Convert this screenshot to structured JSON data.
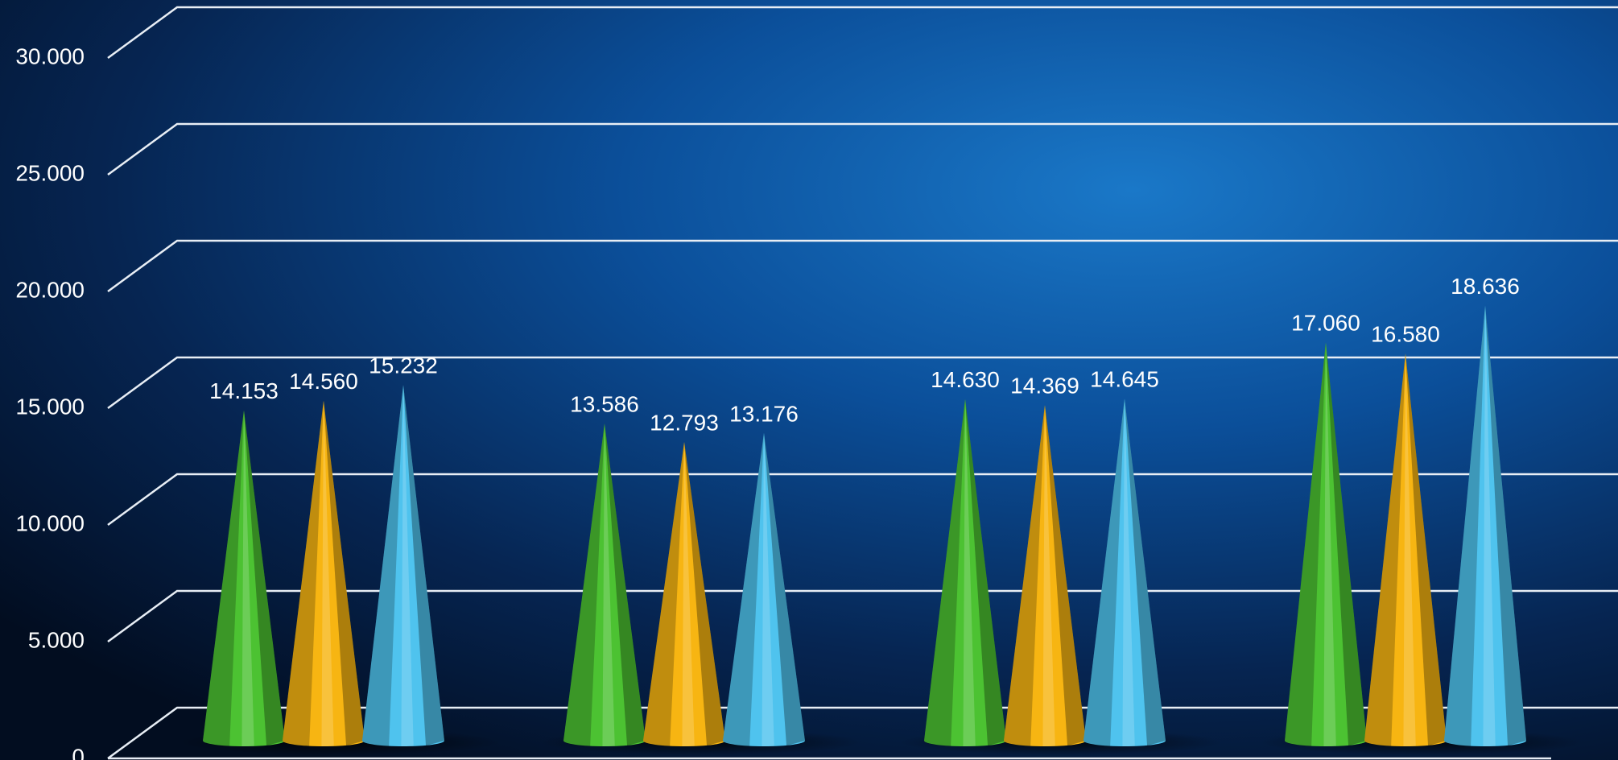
{
  "chart_data": {
    "type": "cone",
    "categories": [
      null,
      null,
      null,
      null
    ],
    "series": [
      {
        "color": "#4cc232",
        "values": [
          14153,
          13586,
          14630,
          17060
        ],
        "value_labels": [
          "14.153",
          "13.586",
          "14.630",
          "17.060"
        ]
      },
      {
        "color": "#f7b512",
        "values": [
          14560,
          12793,
          14369,
          16580
        ],
        "value_labels": [
          "14.560",
          "12.793",
          "14.369",
          "16.580"
        ]
      },
      {
        "color": "#4fc3ee",
        "values": [
          15232,
          13176,
          14645,
          18636
        ],
        "value_labels": [
          "15.232",
          "13.176",
          "14.645",
          "18.636"
        ]
      }
    ],
    "ylim": [
      0,
      30000
    ],
    "yticks": [
      0,
      {
        "value": 5000,
        "label": "5.000"
      },
      {
        "value": 10000,
        "label": "10.000"
      },
      {
        "value": 15000,
        "label": "15.000"
      },
      {
        "value": 20000,
        "label": "20.000"
      },
      {
        "value": 25000,
        "label": "25.000"
      },
      {
        "value": 30000,
        "label": "30.000"
      }
    ],
    "grid": true
  }
}
